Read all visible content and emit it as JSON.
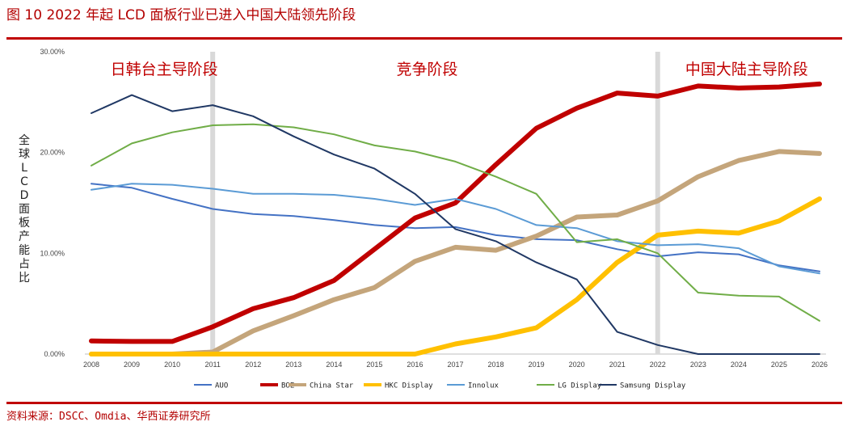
{
  "title": "图 10  2022 年起 LCD 面板行业已进入中国大陆领先阶段",
  "source": "资料来源：DSCC、Omdia、华西证券研究所",
  "chart_data": {
    "type": "line",
    "xlabel": "",
    "ylabel": "全球LCD面板产能占比",
    "ylim": [
      0,
      30
    ],
    "yticks": [
      "0.00%",
      "10.00%",
      "20.00%",
      "30.00%"
    ],
    "x": [
      "2008",
      "2009",
      "2010",
      "2011",
      "2012",
      "2013",
      "2014",
      "2015",
      "2016",
      "2017",
      "2018",
      "2019",
      "2020",
      "2021",
      "2022",
      "2023",
      "2024",
      "2025",
      "2026"
    ],
    "period_lines": [
      "2011",
      "2022"
    ],
    "period_labels": [
      "日韩台主导阶段",
      "竞争阶段",
      "中国大陆主导阶段"
    ],
    "legend_position": "bottom",
    "series": [
      {
        "name": "AUO",
        "color": "#4472c4",
        "width": 2,
        "values": [
          16.9,
          16.5,
          15.4,
          14.4,
          13.9,
          13.7,
          13.3,
          12.8,
          12.5,
          12.6,
          11.8,
          11.4,
          11.3,
          10.4,
          9.7,
          10.1,
          9.9,
          8.8,
          8.2
        ]
      },
      {
        "name": "BOE",
        "color": "#c00000",
        "width": 6,
        "values": [
          1.3,
          1.25,
          1.25,
          2.7,
          4.5,
          5.6,
          7.3,
          10.4,
          13.5,
          15.0,
          18.8,
          22.4,
          24.4,
          25.9,
          25.6,
          26.6,
          26.4,
          26.5,
          26.8
        ]
      },
      {
        "name": "China Star",
        "color": "#c4a57b",
        "width": 6,
        "values": [
          0,
          0,
          0,
          0.2,
          2.3,
          3.8,
          5.4,
          6.6,
          9.2,
          10.6,
          10.3,
          11.7,
          13.6,
          13.8,
          15.2,
          17.6,
          19.2,
          20.1,
          19.9
        ]
      },
      {
        "name": "HKC Display",
        "color": "#ffc000",
        "width": 6,
        "values": [
          0,
          0,
          0,
          0,
          0,
          0,
          0,
          0,
          0,
          1.0,
          1.7,
          2.6,
          5.4,
          9.1,
          11.8,
          12.2,
          12.0,
          13.2,
          15.4
        ]
      },
      {
        "name": "Innolux",
        "color": "#5b9bd5",
        "width": 2,
        "values": [
          16.3,
          16.9,
          16.8,
          16.4,
          15.9,
          15.9,
          15.8,
          15.4,
          14.8,
          15.4,
          14.4,
          12.8,
          12.5,
          11.2,
          10.8,
          10.9,
          10.5,
          8.7,
          8.0
        ]
      },
      {
        "name": "LG Display",
        "color": "#70ad47",
        "width": 2,
        "values": [
          18.7,
          20.9,
          22.0,
          22.7,
          22.8,
          22.5,
          21.8,
          20.7,
          20.1,
          19.1,
          17.6,
          15.9,
          11.1,
          11.4,
          10.0,
          6.1,
          5.8,
          5.7,
          3.3
        ]
      },
      {
        "name": "Samsung Display",
        "color": "#203864",
        "width": 2,
        "values": [
          23.9,
          25.7,
          24.1,
          24.7,
          23.6,
          21.6,
          19.8,
          18.4,
          15.9,
          12.4,
          11.2,
          9.1,
          7.4,
          2.2,
          0.9,
          0,
          0,
          0,
          0
        ]
      }
    ]
  }
}
